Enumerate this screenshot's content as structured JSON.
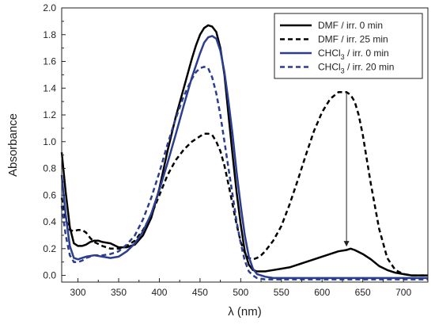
{
  "chart_data": {
    "type": "line",
    "title": "",
    "xlabel": "λ (nm)",
    "ylabel": "Absorbance",
    "xlim": [
      280,
      730
    ],
    "ylim": [
      -0.05,
      2.0
    ],
    "xticks": [
      300,
      350,
      400,
      450,
      500,
      550,
      600,
      650,
      700
    ],
    "yticks": [
      0.0,
      0.2,
      0.4,
      0.6,
      0.8,
      1.0,
      1.2,
      1.4,
      1.6,
      1.8,
      2.0
    ],
    "ytick_labels": [
      "0.0",
      "0.2",
      "0.4",
      "0.6",
      "0.8",
      "1.0",
      "1.2",
      "1.4",
      "1.6",
      "1.8",
      "2.0"
    ],
    "legend_position": "top-right",
    "grid": false,
    "series": [
      {
        "name": "DMF / irr. 0 min",
        "legend_main": "DMF / irr. 0 min",
        "legend_sub": "",
        "legend_rest": "",
        "color": "#000000",
        "dashed": false,
        "x": [
          280,
          285,
          290,
          295,
          300,
          305,
          310,
          315,
          320,
          325,
          330,
          340,
          350,
          360,
          370,
          380,
          390,
          400,
          410,
          420,
          430,
          440,
          445,
          450,
          455,
          460,
          465,
          470,
          475,
          480,
          485,
          490,
          495,
          500,
          505,
          510,
          515,
          520,
          525,
          530,
          540,
          550,
          560,
          570,
          580,
          590,
          600,
          610,
          620,
          630,
          635,
          640,
          650,
          660,
          670,
          680,
          690,
          700,
          710,
          720,
          730
        ],
        "y": [
          0.92,
          0.62,
          0.36,
          0.24,
          0.22,
          0.22,
          0.23,
          0.25,
          0.26,
          0.26,
          0.25,
          0.24,
          0.21,
          0.21,
          0.23,
          0.3,
          0.43,
          0.65,
          0.93,
          1.18,
          1.4,
          1.62,
          1.72,
          1.8,
          1.85,
          1.87,
          1.86,
          1.82,
          1.7,
          1.5,
          1.2,
          0.9,
          0.62,
          0.38,
          0.18,
          0.08,
          0.04,
          0.03,
          0.03,
          0.03,
          0.04,
          0.05,
          0.06,
          0.08,
          0.1,
          0.12,
          0.14,
          0.16,
          0.18,
          0.19,
          0.2,
          0.19,
          0.16,
          0.12,
          0.07,
          0.04,
          0.02,
          0.01,
          0.0,
          0.0,
          0.0
        ]
      },
      {
        "name": "DMF / irr. 25 min",
        "legend_main": "DMF / irr. 25 min",
        "legend_sub": "",
        "legend_rest": "",
        "color": "#000000",
        "dashed": true,
        "x": [
          280,
          285,
          290,
          295,
          300,
          305,
          310,
          315,
          320,
          330,
          340,
          350,
          360,
          370,
          380,
          390,
          400,
          410,
          420,
          430,
          440,
          450,
          455,
          460,
          465,
          470,
          475,
          480,
          485,
          490,
          495,
          500,
          505,
          510,
          515,
          520,
          525,
          530,
          540,
          550,
          560,
          570,
          580,
          590,
          600,
          610,
          620,
          630,
          635,
          640,
          645,
          650,
          660,
          670,
          680,
          690,
          700,
          710,
          720,
          730
        ],
        "y": [
          0.58,
          0.42,
          0.34,
          0.33,
          0.34,
          0.34,
          0.32,
          0.28,
          0.25,
          0.22,
          0.2,
          0.2,
          0.22,
          0.26,
          0.34,
          0.45,
          0.6,
          0.75,
          0.86,
          0.94,
          1.0,
          1.04,
          1.06,
          1.06,
          1.05,
          1.0,
          0.93,
          0.82,
          0.68,
          0.53,
          0.38,
          0.25,
          0.17,
          0.13,
          0.12,
          0.13,
          0.15,
          0.18,
          0.26,
          0.37,
          0.53,
          0.71,
          0.9,
          1.08,
          1.22,
          1.32,
          1.37,
          1.37,
          1.35,
          1.3,
          1.2,
          1.05,
          0.68,
          0.35,
          0.13,
          0.04,
          0.01,
          0.0,
          0.0,
          0.0
        ]
      },
      {
        "name": "CHCl3 / irr. 0 min",
        "legend_main": "CHCl",
        "legend_sub": "3",
        "legend_rest": " / irr. 0 min",
        "color": "#2b3d8f",
        "dashed": false,
        "x": [
          280,
          285,
          290,
          295,
          300,
          305,
          310,
          320,
          330,
          340,
          350,
          360,
          370,
          380,
          390,
          400,
          410,
          420,
          430,
          440,
          450,
          455,
          460,
          465,
          470,
          475,
          480,
          485,
          490,
          495,
          500,
          505,
          510,
          515,
          520,
          525,
          530,
          540,
          560,
          600,
          650,
          700,
          730
        ],
        "y": [
          0.75,
          0.45,
          0.22,
          0.13,
          0.12,
          0.13,
          0.14,
          0.15,
          0.14,
          0.13,
          0.14,
          0.18,
          0.24,
          0.33,
          0.46,
          0.64,
          0.84,
          1.05,
          1.27,
          1.48,
          1.66,
          1.74,
          1.78,
          1.79,
          1.77,
          1.68,
          1.52,
          1.3,
          1.05,
          0.77,
          0.52,
          0.3,
          0.14,
          0.05,
          0.01,
          0.0,
          -0.01,
          -0.02,
          -0.02,
          -0.02,
          -0.02,
          -0.02,
          -0.02
        ]
      },
      {
        "name": "CHCl3 / irr. 20 min",
        "legend_main": "CHCl",
        "legend_sub": "3",
        "legend_rest": " / irr. 20 min",
        "color": "#2b3d8f",
        "dashed": true,
        "x": [
          280,
          285,
          290,
          295,
          300,
          305,
          310,
          320,
          330,
          340,
          350,
          360,
          370,
          380,
          390,
          400,
          410,
          420,
          430,
          440,
          445,
          450,
          455,
          460,
          465,
          470,
          475,
          480,
          485,
          490,
          495,
          500,
          505,
          510,
          515,
          520,
          530,
          560,
          600,
          650,
          700,
          730
        ],
        "y": [
          0.52,
          0.3,
          0.15,
          0.1,
          0.1,
          0.11,
          0.13,
          0.15,
          0.15,
          0.16,
          0.18,
          0.23,
          0.3,
          0.42,
          0.58,
          0.77,
          0.98,
          1.17,
          1.34,
          1.47,
          1.52,
          1.55,
          1.56,
          1.55,
          1.48,
          1.36,
          1.2,
          1.0,
          0.8,
          0.6,
          0.4,
          0.24,
          0.11,
          0.03,
          0.0,
          -0.02,
          -0.03,
          -0.03,
          -0.03,
          -0.03,
          -0.03,
          -0.03
        ]
      }
    ],
    "annotations": [
      {
        "type": "arrow",
        "from": [
          630,
          1.37
        ],
        "to": [
          630,
          0.22
        ]
      }
    ]
  }
}
